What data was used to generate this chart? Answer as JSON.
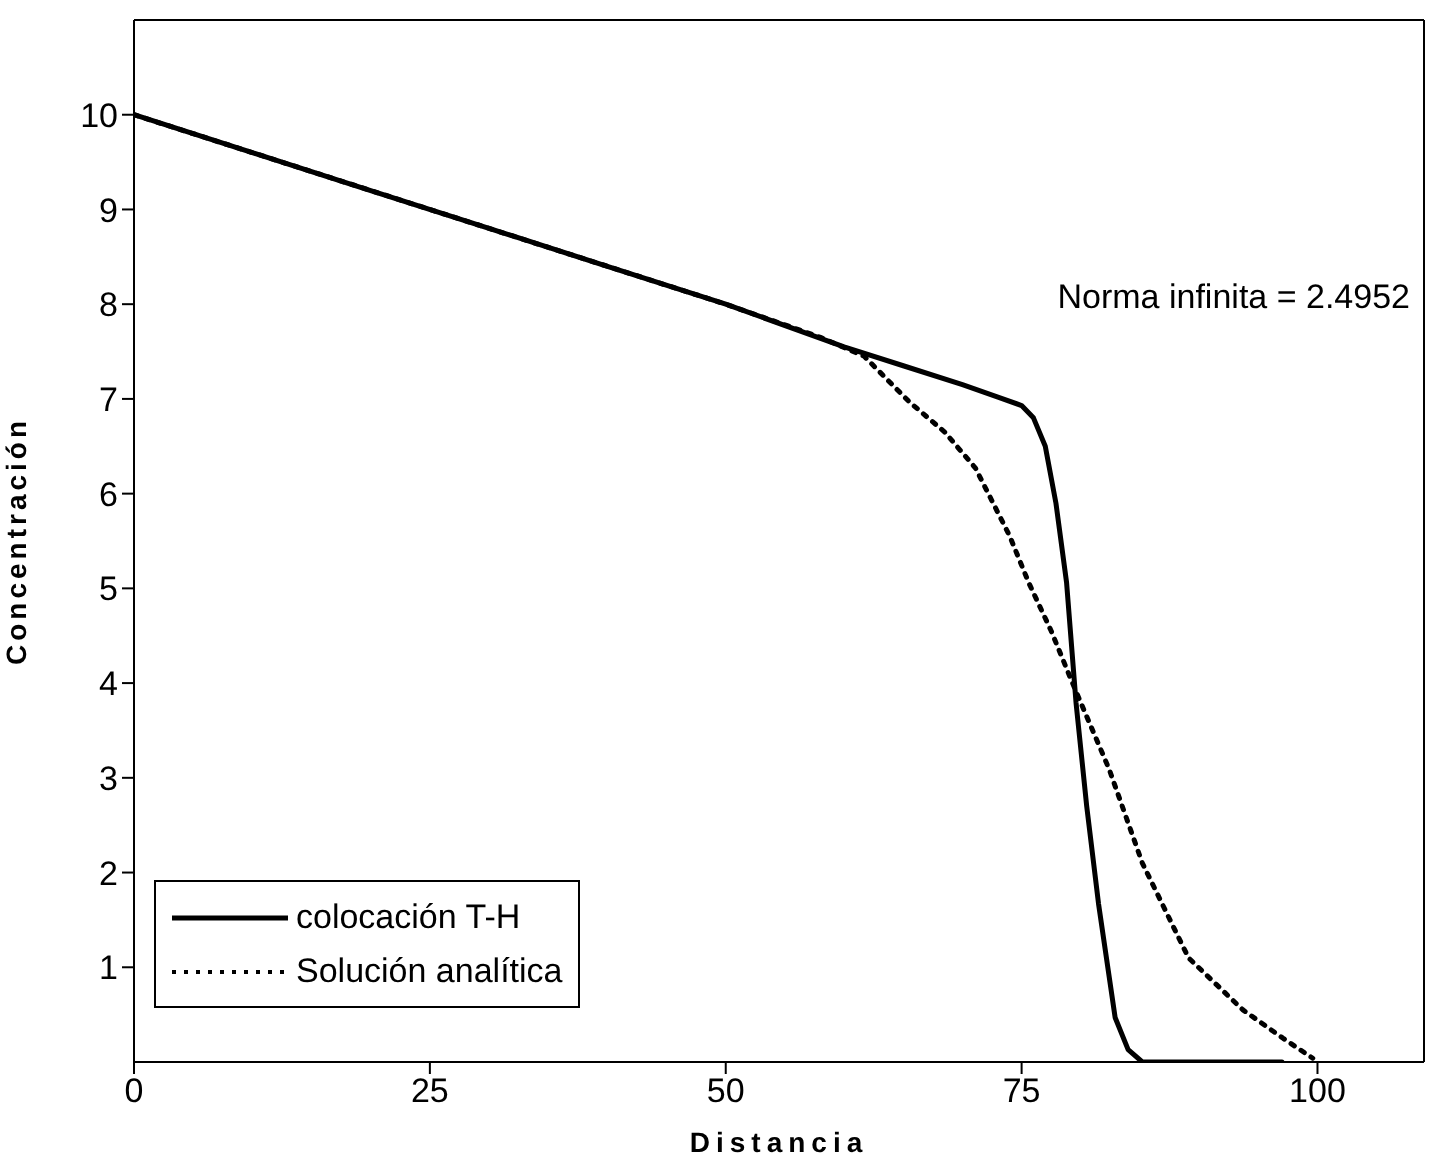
{
  "chart_data": {
    "type": "line",
    "xlabel": "Distancia",
    "ylabel": "Concentración",
    "annotations": [
      "Norma infinita = 2.4952"
    ],
    "xlim": [
      0,
      109
    ],
    "ylim": [
      0,
      11
    ],
    "xticks": [
      0,
      25,
      50,
      75,
      100
    ],
    "yticks": [
      1,
      2,
      3,
      4,
      5,
      6,
      7,
      8,
      9,
      10
    ],
    "legend": "bottom left",
    "marker": "none",
    "series": [
      {
        "name": "colocación T-H",
        "color": "#000000",
        "line_style": "solid",
        "x": [
          0,
          10,
          20,
          30,
          40,
          50,
          60,
          65,
          70,
          73,
          75,
          76,
          77,
          77.9,
          78.8,
          79.6,
          80.5,
          81.5,
          82.9,
          84,
          85.2,
          90,
          97
        ],
        "values": [
          10,
          9.6,
          9.2,
          8.8,
          8.4,
          8,
          7.55,
          7.35,
          7.15,
          7.02,
          6.93,
          6.8,
          6.5,
          5.9,
          5.06,
          3.79,
          2.7,
          1.67,
          0.47,
          0.13,
          0,
          0,
          0
        ]
      },
      {
        "name": "Solución analítica",
        "color": "#000000",
        "line_style": "dotted",
        "x": [
          0,
          10,
          20,
          30,
          40,
          50,
          58,
          61.7,
          65.5,
          68.5,
          71.1,
          74,
          75.6,
          77.5,
          79.3,
          82.4,
          85.2,
          89.1,
          93.7,
          97.1,
          99.6
        ],
        "values": [
          10,
          9.6,
          9.2,
          8.8,
          8.4,
          8,
          7.65,
          7.45,
          6.97,
          6.65,
          6.27,
          5.55,
          5.06,
          4.55,
          4,
          3.09,
          2.1,
          1.1,
          0.55,
          0.25,
          0.04
        ]
      }
    ]
  }
}
